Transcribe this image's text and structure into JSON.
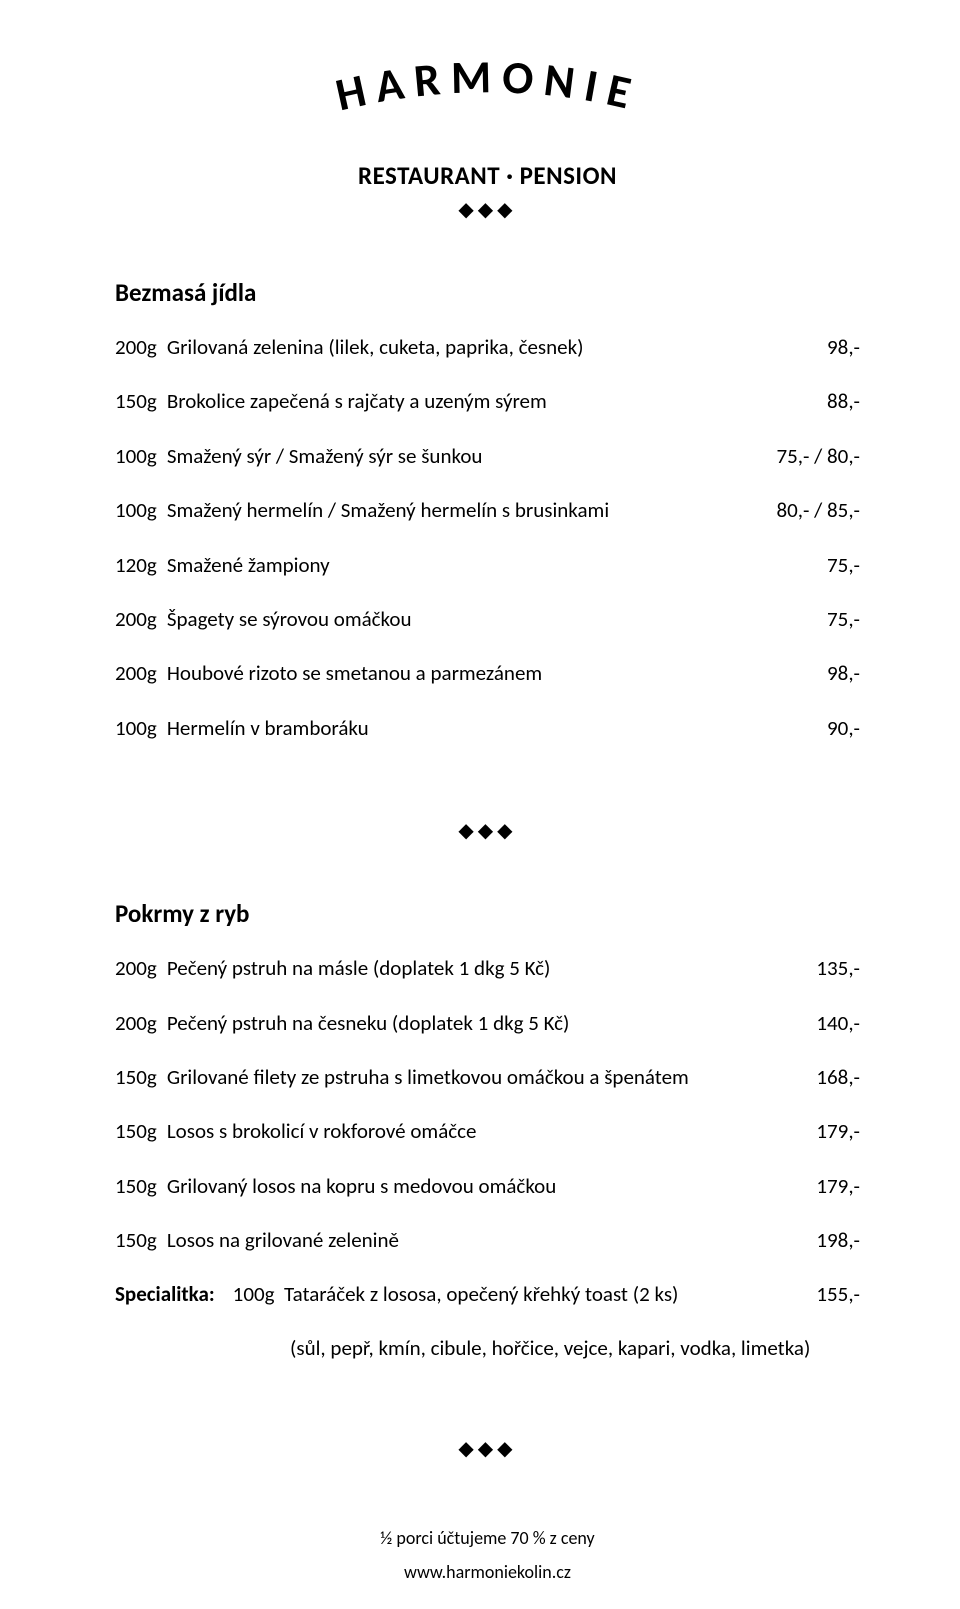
{
  "header": {
    "brand": "HARMONIE",
    "brand_letters": [
      "H",
      "A",
      "R",
      "M",
      "O",
      "N",
      "I",
      "E"
    ],
    "subtitle": "RESTAURANT · PENSION",
    "diamonds": "◆◆◆",
    "brand_font_size": 46,
    "brand_weight": 900,
    "brand_letter_spacing": 6
  },
  "sections": [
    {
      "title": "Bezmasá jídla",
      "items": [
        {
          "weight": "200g",
          "desc": "Grilovaná zelenina (lilek, cuketa, paprika, česnek)",
          "price": "98,-"
        },
        {
          "weight": "150g",
          "desc": "Brokolice zapečená s rajčaty a uzeným sýrem",
          "price": "88,-"
        },
        {
          "weight": "100g",
          "desc": "Smažený sýr / Smažený sýr se šunkou",
          "price": "75,- / 80,-"
        },
        {
          "weight": "100g",
          "desc": "Smažený hermelín / Smažený hermelín s brusinkami",
          "price": "80,- / 85,-"
        },
        {
          "weight": "120g",
          "desc": "Smažené žampiony",
          "price": "75,-"
        },
        {
          "weight": "200g",
          "desc": "Špagety se sýrovou omáčkou",
          "price": "75,-"
        },
        {
          "weight": "200g",
          "desc": "Houbové rizoto se smetanou a parmezánem",
          "price": "98,-"
        },
        {
          "weight": "100g",
          "desc": "Hermelín v bramboráku",
          "price": "90,-"
        }
      ]
    },
    {
      "title": "Pokrmy z ryb",
      "items": [
        {
          "weight": "200g",
          "desc": "Pečený pstruh na másle (doplatek 1 dkg 5 Kč)",
          "price": "135,-"
        },
        {
          "weight": "200g",
          "desc": "Pečený pstruh na česneku (doplatek 1 dkg 5 Kč)",
          "price": "140,-"
        },
        {
          "weight": "150g",
          "desc": "Grilované filety ze pstruha s limetkovou omáčkou a špenátem",
          "price": "168,-"
        },
        {
          "weight": "150g",
          "desc": "Losos s brokolicí v rokforové omáčce",
          "price": "179,-"
        },
        {
          "weight": "150g",
          "desc": "Grilovaný losos na kopru s medovou omáčkou",
          "price": "179,-"
        },
        {
          "weight": "150g",
          "desc": "Losos na grilované zelenině",
          "price": "198,-"
        }
      ],
      "special": {
        "lead": "Specialitka:",
        "weight": "100g",
        "desc": "Tataráček z lososa, opečený křehký toast (2 ks)",
        "price": "155,-",
        "ingredients": "(sůl, pepř, kmín, cibule, hořčice, vejce, kapari, vodka, limetka)"
      }
    }
  ],
  "footer": {
    "line1": "½ porci účtujeme 70 % z ceny",
    "line2": "www.harmoniekolin.cz"
  },
  "style": {
    "text_color": "#000000",
    "bg_color": "#ffffff",
    "body_font_size": 21,
    "title_font_size": 25
  }
}
